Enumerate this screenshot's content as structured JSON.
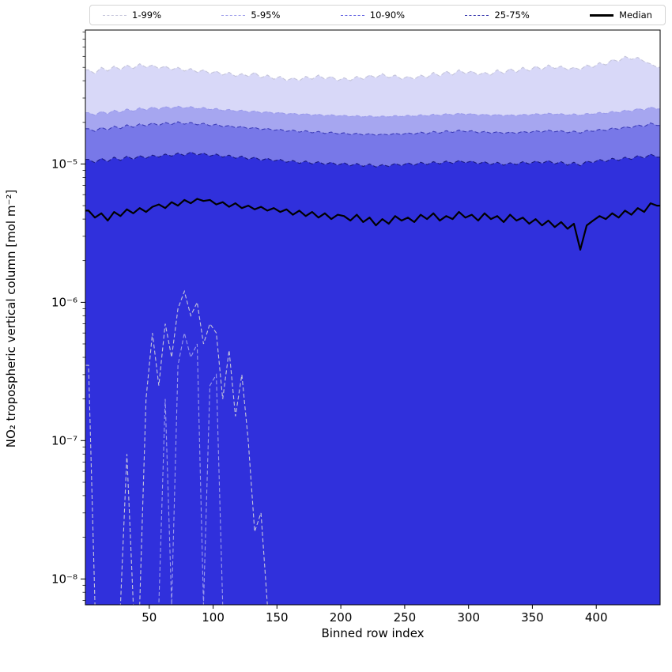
{
  "chart_data": {
    "type": "area",
    "title": "",
    "xlabel": "Binned row index",
    "ylabel": "NO2 tropospheric vertical column [mol m-2]",
    "ylabel_display": "NO₂ tropospheric vertical column [mol m⁻²]",
    "y_scale": "log",
    "x_range": [
      0,
      450
    ],
    "y_range": [
      6.5e-09,
      9.3e-05
    ],
    "x_ticks": [
      50,
      100,
      150,
      200,
      250,
      300,
      350,
      400
    ],
    "y_ticks_exp": [
      -5,
      -6,
      -7,
      -8
    ],
    "y_tick_labels": [
      "10⁻⁵",
      "10⁻⁶",
      "10⁻⁷",
      "10⁻⁸"
    ],
    "n": 90,
    "x0": 2.5,
    "dx": 5,
    "legend": [
      {
        "label": "1-99%",
        "color": "#c4c4da",
        "dash": true,
        "width": 1.3
      },
      {
        "label": "5-95%",
        "color": "#9a9aea",
        "dash": true,
        "width": 1.3
      },
      {
        "label": "10-90%",
        "color": "#5b5be0",
        "dash": true,
        "width": 1.3
      },
      {
        "label": "25-75%",
        "color": "#2a2aa8",
        "dash": true,
        "width": 1.3
      },
      {
        "label": "Median",
        "color": "#000000",
        "dash": false,
        "width": 3
      }
    ],
    "bands": [
      {
        "label": "1-99%",
        "upper": "p99",
        "lower": "p1_low",
        "fill": "#d8d8f8",
        "line": "#c4c4da"
      },
      {
        "label": "5-95%",
        "upper": "p95",
        "lower": "p5_low",
        "fill": "#a6a6f0",
        "line": "#9a9aea"
      },
      {
        "label": "10-90%",
        "upper": "p90",
        "lower": "p10_low",
        "fill": "#7878e8",
        "line": "#3c3cb8"
      },
      {
        "label": "25-75%",
        "upper": "p75",
        "lower": "p25_low",
        "fill": "#3030dc",
        "line": "#1a1a80"
      }
    ],
    "median_color": "#000000",
    "series": [
      {
        "name": "p99",
        "values": [
          4.8e-05,
          4.5e-05,
          5e-05,
          4.7e-05,
          5.1e-05,
          4.8e-05,
          5.2e-05,
          4.9e-05,
          5.3e-05,
          5e-05,
          5.2e-05,
          4.9e-05,
          5.1e-05,
          4.8e-05,
          5e-05,
          4.7e-05,
          4.9e-05,
          4.6e-05,
          4.8e-05,
          4.5e-05,
          4.7e-05,
          4.4e-05,
          4.6e-05,
          4.3e-05,
          4.5e-05,
          4.3e-05,
          4.6e-05,
          4.2e-05,
          4.4e-05,
          4.1e-05,
          4.3e-05,
          4e-05,
          4.2e-05,
          4e-05,
          4.3e-05,
          4.1e-05,
          4.4e-05,
          4.1e-05,
          4.3e-05,
          4e-05,
          4.2e-05,
          4e-05,
          4.3e-05,
          4.1e-05,
          4.4e-05,
          4.2e-05,
          4.5e-05,
          4.2e-05,
          4.4e-05,
          4.1e-05,
          4.3e-05,
          4.1e-05,
          4.4e-05,
          4.2e-05,
          4.6e-05,
          4.3e-05,
          4.7e-05,
          4.4e-05,
          4.8e-05,
          4.5e-05,
          4.7e-05,
          4.4e-05,
          4.6e-05,
          4.4e-05,
          4.8e-05,
          4.5e-05,
          4.9e-05,
          4.6e-05,
          5e-05,
          4.7e-05,
          5.1e-05,
          4.8e-05,
          5.2e-05,
          4.9e-05,
          5.1e-05,
          4.8e-05,
          5e-05,
          4.8e-05,
          5.2e-05,
          5e-05,
          5.4e-05,
          5.2e-05,
          5.7e-05,
          5.5e-05,
          6e-05,
          5.7e-05,
          5.9e-05,
          5.5e-05,
          5.3e-05,
          5e-05
        ]
      },
      {
        "name": "p95",
        "values": [
          2.35e-05,
          2.25e-05,
          2.4e-05,
          2.3e-05,
          2.45e-05,
          2.35e-05,
          2.5e-05,
          2.4e-05,
          2.55e-05,
          2.45e-05,
          2.58e-05,
          2.48e-05,
          2.6e-05,
          2.52e-05,
          2.62e-05,
          2.53e-05,
          2.6e-05,
          2.5e-05,
          2.56e-05,
          2.47e-05,
          2.52e-05,
          2.43e-05,
          2.48e-05,
          2.4e-05,
          2.45e-05,
          2.37e-05,
          2.42e-05,
          2.34e-05,
          2.39e-05,
          2.32e-05,
          2.36e-05,
          2.29e-05,
          2.33e-05,
          2.27e-05,
          2.31e-05,
          2.25e-05,
          2.29e-05,
          2.23e-05,
          2.27e-05,
          2.22e-05,
          2.25e-05,
          2.2e-05,
          2.24e-05,
          2.19e-05,
          2.23e-05,
          2.18e-05,
          2.22e-05,
          2.19e-05,
          2.24e-05,
          2.2e-05,
          2.25e-05,
          2.21e-05,
          2.27e-05,
          2.22e-05,
          2.29e-05,
          2.24e-05,
          2.31e-05,
          2.26e-05,
          2.33e-05,
          2.28e-05,
          2.31e-05,
          2.25e-05,
          2.29e-05,
          2.24e-05,
          2.28e-05,
          2.23e-05,
          2.27e-05,
          2.23e-05,
          2.29e-05,
          2.25e-05,
          2.31e-05,
          2.27e-05,
          2.33e-05,
          2.28e-05,
          2.31e-05,
          2.25e-05,
          2.3e-05,
          2.24e-05,
          2.32e-05,
          2.29e-05,
          2.36e-05,
          2.31e-05,
          2.4e-05,
          2.35e-05,
          2.45e-05,
          2.4e-05,
          2.52e-05,
          2.45e-05,
          2.58e-05,
          2.5e-05
        ]
      },
      {
        "name": "p90",
        "values": [
          1.8e-05,
          1.72e-05,
          1.84e-05,
          1.76e-05,
          1.88e-05,
          1.8e-05,
          1.92e-05,
          1.84e-05,
          1.95e-05,
          1.88e-05,
          1.98e-05,
          1.9e-05,
          2e-05,
          1.93e-05,
          2.02e-05,
          1.94e-05,
          2e-05,
          1.92e-05,
          1.97e-05,
          1.89e-05,
          1.94e-05,
          1.86e-05,
          1.9e-05,
          1.83e-05,
          1.87e-05,
          1.8e-05,
          1.84e-05,
          1.77e-05,
          1.81e-05,
          1.75e-05,
          1.78e-05,
          1.72e-05,
          1.76e-05,
          1.7e-05,
          1.74e-05,
          1.68e-05,
          1.72e-05,
          1.66e-05,
          1.7e-05,
          1.65e-05,
          1.68e-05,
          1.63e-05,
          1.67e-05,
          1.62e-05,
          1.66e-05,
          1.61e-05,
          1.65e-05,
          1.62e-05,
          1.67e-05,
          1.63e-05,
          1.68e-05,
          1.64e-05,
          1.7e-05,
          1.65e-05,
          1.72e-05,
          1.67e-05,
          1.74e-05,
          1.69e-05,
          1.76e-05,
          1.71e-05,
          1.74e-05,
          1.68e-05,
          1.72e-05,
          1.67e-05,
          1.71e-05,
          1.66e-05,
          1.7e-05,
          1.66e-05,
          1.72e-05,
          1.68e-05,
          1.74e-05,
          1.7e-05,
          1.76e-05,
          1.71e-05,
          1.74e-05,
          1.68e-05,
          1.73e-05,
          1.67e-05,
          1.75e-05,
          1.72e-05,
          1.78e-05,
          1.74e-05,
          1.82e-05,
          1.78e-05,
          1.86e-05,
          1.82e-05,
          1.92e-05,
          1.86e-05,
          1.98e-05,
          1.9e-05
        ]
      },
      {
        "name": "p75",
        "values": [
          1.08e-05,
          1.02e-05,
          1.1e-05,
          1.04e-05,
          1.12e-05,
          1.06e-05,
          1.14e-05,
          1.08e-05,
          1.15e-05,
          1.1e-05,
          1.16e-05,
          1.12e-05,
          1.18e-05,
          1.14e-05,
          1.2e-05,
          1.15e-05,
          1.22e-05,
          1.16e-05,
          1.2e-05,
          1.14e-05,
          1.18e-05,
          1.12e-05,
          1.16e-05,
          1.1e-05,
          1.14e-05,
          1.08e-05,
          1.12e-05,
          1.06e-05,
          1.1e-05,
          1.05e-05,
          1.08e-05,
          1.03e-05,
          1.06e-05,
          1.01e-05,
          1.05e-05,
          1e-05,
          1.04e-05,
          9.9e-06,
          1.03e-05,
          9.8e-06,
          1.02e-05,
          9.7e-06,
          1.01e-05,
          9.6e-06,
          1e-05,
          9.5e-06,
          9.9e-06,
          9.6e-06,
          1.01e-05,
          9.7e-06,
          1.02e-05,
          9.8e-06,
          1.03e-05,
          9.9e-06,
          1.04e-05,
          1e-05,
          1.05e-05,
          1.01e-05,
          1.06e-05,
          1.02e-05,
          1.05e-05,
          1e-05,
          1.04e-05,
          9.9e-06,
          1.03e-05,
          9.8e-06,
          1.02e-05,
          9.9e-06,
          1.04e-05,
          1e-05,
          1.05e-05,
          1.01e-05,
          1.06e-05,
          1e-05,
          1.04e-05,
          9.8e-06,
          1.03e-05,
          9.7e-06,
          1.05e-05,
          1.02e-05,
          1.08e-05,
          1.04e-05,
          1.1e-05,
          1.06e-05,
          1.12e-05,
          1.08e-05,
          1.15e-05,
          1.1e-05,
          1.18e-05,
          1.12e-05
        ]
      },
      {
        "name": "median",
        "values": [
          4.6e-06,
          4.1e-06,
          4.4e-06,
          3.9e-06,
          4.5e-06,
          4.2e-06,
          4.7e-06,
          4.4e-06,
          4.8e-06,
          4.5e-06,
          4.9e-06,
          5.1e-06,
          4.8e-06,
          5.3e-06,
          5e-06,
          5.5e-06,
          5.2e-06,
          5.6e-06,
          5.4e-06,
          5.5e-06,
          5.1e-06,
          5.3e-06,
          4.9e-06,
          5.2e-06,
          4.8e-06,
          5e-06,
          4.7e-06,
          4.9e-06,
          4.6e-06,
          4.8e-06,
          4.5e-06,
          4.7e-06,
          4.3e-06,
          4.6e-06,
          4.2e-06,
          4.5e-06,
          4.1e-06,
          4.4e-06,
          4e-06,
          4.3e-06,
          4.2e-06,
          3.9e-06,
          4.3e-06,
          3.8e-06,
          4.1e-06,
          3.6e-06,
          4e-06,
          3.7e-06,
          4.2e-06,
          3.9e-06,
          4.1e-06,
          3.8e-06,
          4.3e-06,
          4e-06,
          4.4e-06,
          3.9e-06,
          4.2e-06,
          4e-06,
          4.5e-06,
          4.1e-06,
          4.3e-06,
          3.9e-06,
          4.4e-06,
          4e-06,
          4.2e-06,
          3.8e-06,
          4.3e-06,
          3.9e-06,
          4.1e-06,
          3.7e-06,
          4e-06,
          3.6e-06,
          3.9e-06,
          3.5e-06,
          3.8e-06,
          3.4e-06,
          3.7e-06,
          2.4e-06,
          3.6e-06,
          3.9e-06,
          4.2e-06,
          4e-06,
          4.4e-06,
          4.1e-06,
          4.6e-06,
          4.3e-06,
          4.8e-06,
          4.5e-06,
          5.2e-06,
          5e-06
        ]
      },
      {
        "name": "p25_low",
        "constant": 1e-09
      },
      {
        "name": "p10_low",
        "constant": 1e-09
      },
      {
        "name": "p5_low",
        "values": [
          1e-09,
          1e-09,
          1e-09,
          1e-09,
          1e-09,
          1e-09,
          1e-09,
          1e-09,
          1e-09,
          1e-09,
          1e-09,
          1e-09,
          2e-07,
          1e-09,
          3.5e-07,
          6e-07,
          4e-07,
          5e-07,
          1e-09,
          2.5e-07,
          3e-07,
          1e-09,
          1e-09,
          1e-09,
          1e-09,
          1e-09,
          1e-09,
          1e-09,
          1e-09,
          1e-09,
          1e-09,
          1e-09,
          1e-09,
          1e-09,
          1e-09,
          1e-09,
          1e-09,
          1e-09,
          1e-09,
          1e-09,
          1e-09,
          1e-09,
          1e-09,
          1e-09,
          1e-09,
          1e-09,
          1e-09,
          1e-09,
          1e-09,
          1e-09,
          1e-09,
          1e-09,
          1e-09,
          1e-09,
          1e-09,
          1e-09,
          1e-09,
          1e-09,
          1e-09,
          1e-09,
          1e-09,
          1e-09,
          1e-09,
          1e-09,
          1e-09,
          1e-09,
          1e-09,
          1e-09,
          1e-09,
          1e-09,
          1e-09,
          1e-09,
          1e-09,
          1e-09,
          1e-09,
          1e-09,
          1e-09,
          1e-09,
          1e-09,
          1e-09,
          1e-09,
          1e-09,
          1e-09,
          1e-09,
          1e-09,
          1e-09,
          1e-09,
          1e-09,
          1e-09,
          1e-09
        ]
      },
      {
        "name": "p1_low",
        "values": [
          3.5e-07,
          1e-09,
          1e-09,
          1e-09,
          1e-09,
          1e-09,
          8e-08,
          1e-09,
          1e-09,
          2e-07,
          6e-07,
          2.5e-07,
          7e-07,
          4e-07,
          9e-07,
          1.2e-06,
          8e-07,
          1e-06,
          5e-07,
          7e-07,
          6e-07,
          2e-07,
          4.5e-07,
          1.5e-07,
          3e-07,
          1e-07,
          2.2e-08,
          3e-08,
          1e-09,
          1e-09,
          1e-09,
          1e-09,
          1e-09,
          1e-09,
          1e-09,
          1e-09,
          1e-09,
          1e-09,
          1e-09,
          1e-09,
          1e-09,
          1e-09,
          1e-09,
          1e-09,
          1e-09,
          1e-09,
          1e-09,
          1e-09,
          1e-09,
          1e-09,
          1e-09,
          1e-09,
          1e-09,
          1e-09,
          1e-09,
          1e-09,
          1e-09,
          1e-09,
          1e-09,
          1e-09,
          1e-09,
          1e-09,
          1e-09,
          1e-09,
          1e-09,
          1e-09,
          1e-09,
          1e-09,
          1e-09,
          1e-09,
          1e-09,
          1e-09,
          1e-09,
          1e-09,
          1e-09,
          1e-09,
          1e-09,
          1e-09,
          1e-09,
          1e-09,
          1e-09,
          1e-09,
          1e-09,
          1e-09,
          1e-09,
          1e-09,
          1e-09,
          1e-09,
          1e-09,
          1e-09
        ]
      }
    ]
  }
}
